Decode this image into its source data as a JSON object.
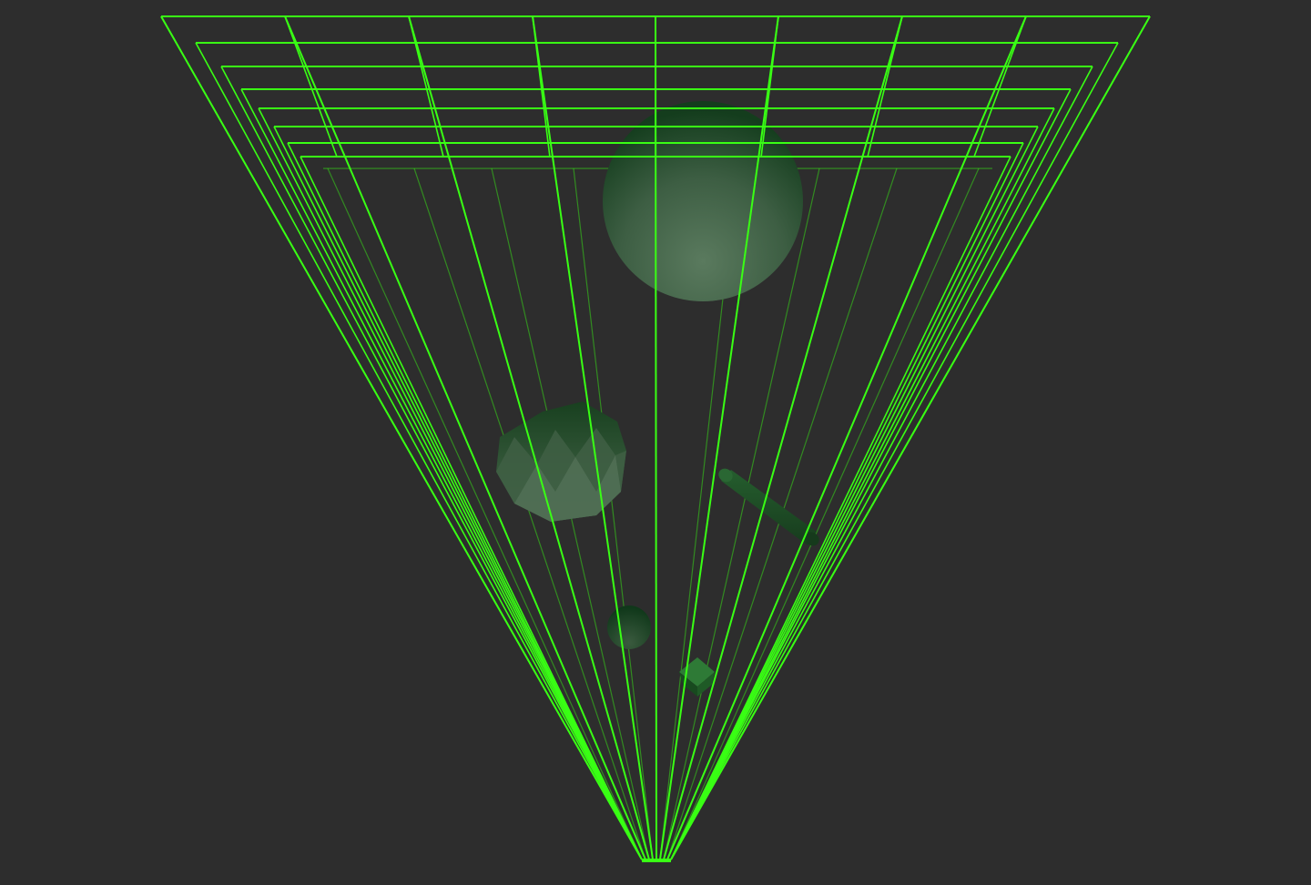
{
  "viewport": {
    "background": "#2d2d2d",
    "frustum_color": "#39ff14",
    "object_color": "#1f6a2a"
  },
  "scene": {
    "camera": "perspective",
    "helper": "camera-frustum",
    "objects": [
      {
        "kind": "sphere",
        "icon": "sphere-icon"
      },
      {
        "kind": "icosahedron",
        "icon": "icosahedron-icon"
      },
      {
        "kind": "cylinder",
        "icon": "cylinder-icon"
      },
      {
        "kind": "small-sphere",
        "icon": "sphere-icon"
      },
      {
        "kind": "cube",
        "icon": "cube-icon"
      }
    ]
  }
}
